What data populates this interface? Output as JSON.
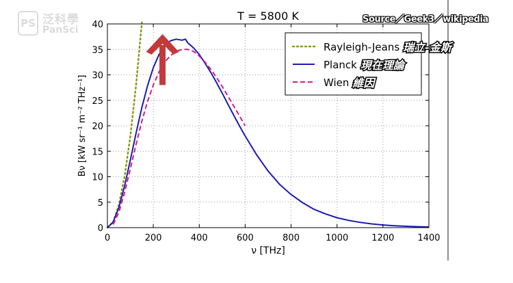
{
  "watermark": {
    "logo_glyph": "PS",
    "logo_zh": "泛科學",
    "logo_en": "PanSci",
    "source": "Source／Geek3／wikipedia"
  },
  "chart_data": {
    "type": "line",
    "title": "T = 5800 K",
    "xlabel": "ν [THz]",
    "ylabel": "Bν [kW sr⁻¹ m⁻² THz⁻¹]",
    "xlim": [
      0,
      1400
    ],
    "ylim": [
      0,
      40
    ],
    "xticks": [
      0,
      200,
      400,
      600,
      800,
      1000,
      1200,
      1400
    ],
    "yticks": [
      0,
      5,
      10,
      15,
      20,
      25,
      30,
      35,
      40
    ],
    "grid": true,
    "legend_position": "top-right",
    "series": [
      {
        "name": "Rayleigh-Jeans",
        "annotation": "瑞立-金斯",
        "color": "#8a9a16",
        "style": "dotted",
        "x": [
          0,
          25,
          50,
          75,
          100,
          125,
          150
        ],
        "y": [
          0,
          1.12,
          4.5,
          10.1,
          18.0,
          28.1,
          40.4
        ]
      },
      {
        "name": "Planck",
        "annotation": "現在理論",
        "color": "#1a1ab3",
        "style": "solid",
        "x": [
          0,
          25,
          50,
          75,
          100,
          125,
          150,
          175,
          200,
          225,
          250,
          275,
          300,
          325,
          340,
          350,
          375,
          400,
          425,
          450,
          475,
          500,
          525,
          550,
          575,
          600,
          650,
          700,
          750,
          800,
          850,
          900,
          950,
          1000,
          1050,
          1100,
          1150,
          1200,
          1250,
          1300,
          1350,
          1400
        ],
        "y": [
          0,
          1.07,
          3.95,
          8.2,
          13.3,
          18.6,
          23.6,
          27.9,
          31.4,
          34.0,
          35.7,
          36.7,
          37.0,
          36.8,
          37.0,
          36.3,
          35.3,
          34.0,
          32.3,
          30.5,
          28.5,
          26.4,
          24.2,
          22.1,
          20.0,
          18.0,
          14.3,
          11.1,
          8.5,
          6.5,
          4.9,
          3.6,
          2.7,
          1.95,
          1.42,
          1.03,
          0.74,
          0.53,
          0.38,
          0.27,
          0.19,
          0.13
        ]
      },
      {
        "name": "Wien",
        "annotation": "維因",
        "color": "#d4198a",
        "style": "dashed",
        "x": [
          25,
          50,
          75,
          100,
          125,
          150,
          175,
          200,
          225,
          250,
          275,
          300,
          325,
          350,
          375,
          400,
          425,
          450,
          475,
          500,
          550,
          600
        ],
        "y": [
          0.6,
          3.0,
          6.9,
          11.6,
          16.4,
          20.9,
          24.8,
          28.0,
          30.6,
          32.5,
          33.8,
          34.6,
          35.0,
          35.0,
          34.6,
          33.7,
          32.5,
          31.1,
          29.5,
          27.7,
          23.9,
          20.0
        ]
      }
    ],
    "annotation_arrow": {
      "x": 240,
      "y_from": 28,
      "y_to": 38,
      "color": "#c33a3a"
    }
  }
}
